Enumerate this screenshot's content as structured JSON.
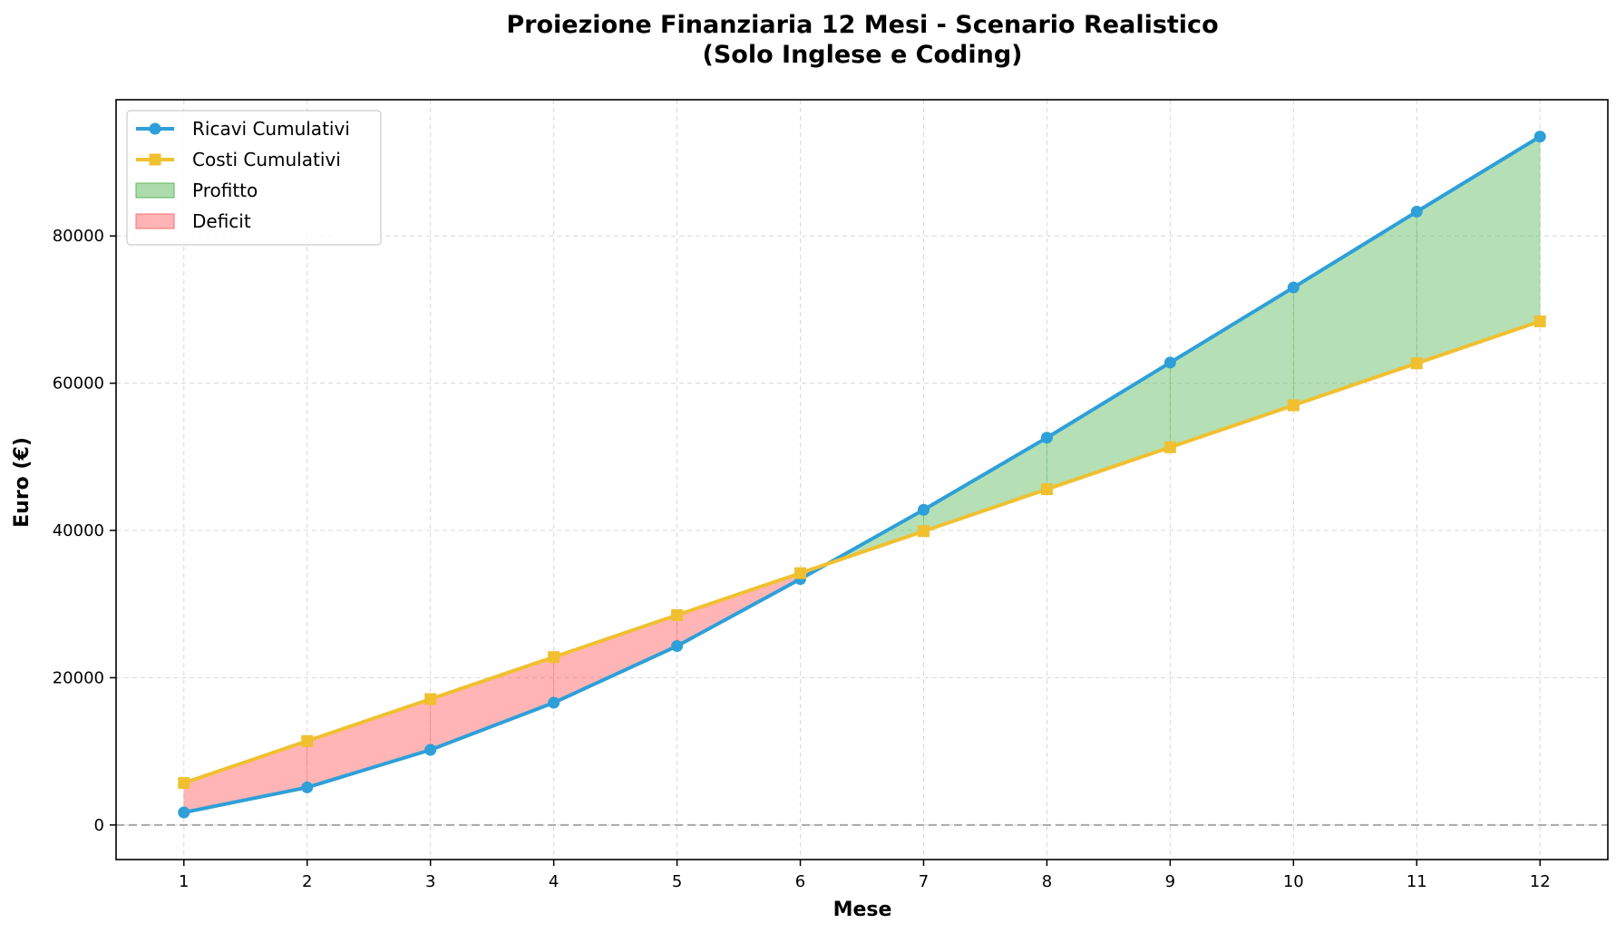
{
  "chart_data": {
    "type": "line",
    "title": "Proiezione Finanziaria 12 Mesi - Scenario Realistico",
    "subtitle": "(Solo Inglese e Coding)",
    "xlabel": "Mese",
    "ylabel": "Euro (€)",
    "x": [
      1,
      2,
      3,
      4,
      5,
      6,
      7,
      8,
      9,
      10,
      11,
      12
    ],
    "x_tick_labels": [
      "1",
      "2",
      "3",
      "4",
      "5",
      "6",
      "7",
      "8",
      "9",
      "10",
      "11",
      "12"
    ],
    "xlim": [
      0.45,
      12.55
    ],
    "ylim": [
      -4700,
      98500
    ],
    "y_ticks": [
      0,
      20000,
      40000,
      60000,
      80000
    ],
    "y_tick_labels": [
      "0",
      "20000",
      "40000",
      "60000",
      "80000"
    ],
    "grid": true,
    "zero_line": true,
    "legend_position": "top-left",
    "series": [
      {
        "name": "Ricavi Cumulativi",
        "color": "#2e9fd8",
        "marker": "circle",
        "values": [
          1700,
          5100,
          10200,
          16600,
          24300,
          33400,
          42800,
          52600,
          62800,
          73000,
          83300,
          93500
        ]
      },
      {
        "name": "Costi Cumulativi",
        "color": "#f0c030",
        "marker": "square",
        "values": [
          5700,
          11400,
          17100,
          22800,
          28500,
          34200,
          39900,
          45600,
          51300,
          57000,
          62700,
          68400
        ]
      }
    ],
    "fills": [
      {
        "name": "Profitto",
        "color": "#5cb85c",
        "opacity": 0.45,
        "condition": "ricavi>=costi"
      },
      {
        "name": "Deficit",
        "color": "#ff6b6b",
        "opacity": 0.5,
        "condition": "ricavi<costi"
      }
    ],
    "legend": [
      {
        "label": "Ricavi Cumulativi",
        "kind": "line",
        "marker": "circle",
        "color": "#2e9fd8"
      },
      {
        "label": "Costi Cumulativi",
        "kind": "line",
        "marker": "square",
        "color": "#f0c030"
      },
      {
        "label": "Profitto",
        "kind": "patch",
        "color": "#5cb85c"
      },
      {
        "label": "Deficit",
        "kind": "patch",
        "color": "#ff6b6b"
      }
    ]
  }
}
